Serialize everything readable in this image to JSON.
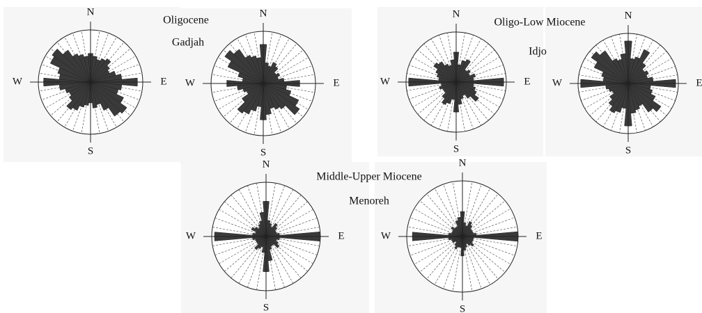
{
  "groups": [
    {
      "title": "Oligocene",
      "subtitle": "Gadjah"
    },
    {
      "title": "Oligo-Low Miocene",
      "subtitle": "Idjo"
    },
    {
      "title": "Middle-Upper Miocene",
      "subtitle": "Menoreh"
    }
  ],
  "chart_data": [
    {
      "type": "rose",
      "directions": [
        "N",
        "E",
        "S",
        "W"
      ],
      "rlim": [
        0,
        1
      ],
      "color": "#3a3a3a",
      "values": [
        0.55,
        0.5,
        0.45,
        0.5,
        0.55,
        0.45,
        0.4,
        0.5,
        0.6,
        0.9,
        0.6,
        0.55,
        0.7,
        0.85,
        0.8,
        0.6,
        0.45,
        0.5,
        0.4,
        0.45,
        0.5,
        0.6,
        0.65,
        0.5,
        0.45,
        0.5,
        0.6,
        0.9,
        0.6,
        0.65,
        0.85,
        0.9,
        0.75,
        0.6,
        0.55,
        0.5
      ]
    },
    {
      "type": "rose",
      "directions": [
        "N",
        "E",
        "S",
        "W"
      ],
      "rlim": [
        0,
        1
      ],
      "color": "#3a3a3a",
      "values": [
        0.75,
        0.4,
        0.35,
        0.45,
        0.4,
        0.3,
        0.35,
        0.3,
        0.4,
        0.7,
        0.45,
        0.55,
        0.75,
        0.85,
        0.6,
        0.55,
        0.5,
        0.6,
        0.7,
        0.45,
        0.55,
        0.65,
        0.7,
        0.5,
        0.35,
        0.4,
        0.5,
        0.7,
        0.4,
        0.5,
        0.75,
        0.9,
        0.8,
        0.6,
        0.55,
        0.5
      ]
    },
    {
      "type": "rose",
      "directions": [
        "N",
        "E",
        "S",
        "W"
      ],
      "rlim": [
        0,
        1
      ],
      "color": "#3a3a3a",
      "values": [
        0.6,
        0.35,
        0.45,
        0.5,
        0.3,
        0.35,
        0.3,
        0.4,
        0.35,
        0.95,
        0.35,
        0.4,
        0.45,
        0.55,
        0.4,
        0.3,
        0.35,
        0.45,
        0.6,
        0.35,
        0.45,
        0.5,
        0.4,
        0.3,
        0.3,
        0.35,
        0.3,
        0.95,
        0.35,
        0.4,
        0.45,
        0.55,
        0.5,
        0.4,
        0.35,
        0.45
      ]
    },
    {
      "type": "rose",
      "directions": [
        "N",
        "E",
        "S",
        "W"
      ],
      "rlim": [
        0,
        1
      ],
      "color": "#3a3a3a",
      "values": [
        0.85,
        0.5,
        0.55,
        0.75,
        0.5,
        0.4,
        0.45,
        0.4,
        0.5,
        0.95,
        0.45,
        0.5,
        0.6,
        0.8,
        0.7,
        0.5,
        0.55,
        0.6,
        0.85,
        0.5,
        0.6,
        0.65,
        0.55,
        0.45,
        0.35,
        0.4,
        0.45,
        0.95,
        0.5,
        0.55,
        0.75,
        0.9,
        0.8,
        0.55,
        0.5,
        0.6
      ]
    },
    {
      "type": "rose",
      "directions": [
        "N",
        "E",
        "S",
        "W"
      ],
      "rlim": [
        0,
        1
      ],
      "color": "#3a3a3a",
      "values": [
        0.65,
        0.3,
        0.25,
        0.2,
        0.3,
        0.25,
        0.2,
        0.2,
        0.25,
        1.0,
        0.25,
        0.2,
        0.25,
        0.3,
        0.2,
        0.2,
        0.25,
        0.45,
        0.65,
        0.3,
        0.2,
        0.25,
        0.3,
        0.2,
        0.2,
        0.2,
        0.25,
        0.95,
        0.25,
        0.2,
        0.3,
        0.25,
        0.2,
        0.25,
        0.3,
        0.45
      ]
    },
    {
      "type": "rose",
      "directions": [
        "N",
        "E",
        "S",
        "W"
      ],
      "rlim": [
        0,
        1
      ],
      "color": "#3a3a3a",
      "values": [
        0.45,
        0.25,
        0.2,
        0.3,
        0.25,
        0.2,
        0.2,
        0.2,
        0.25,
        1.0,
        0.2,
        0.2,
        0.2,
        0.25,
        0.2,
        0.15,
        0.2,
        0.25,
        0.35,
        0.2,
        0.2,
        0.25,
        0.2,
        0.15,
        0.2,
        0.2,
        0.25,
        0.9,
        0.25,
        0.2,
        0.2,
        0.25,
        0.2,
        0.2,
        0.3,
        0.35
      ]
    }
  ]
}
